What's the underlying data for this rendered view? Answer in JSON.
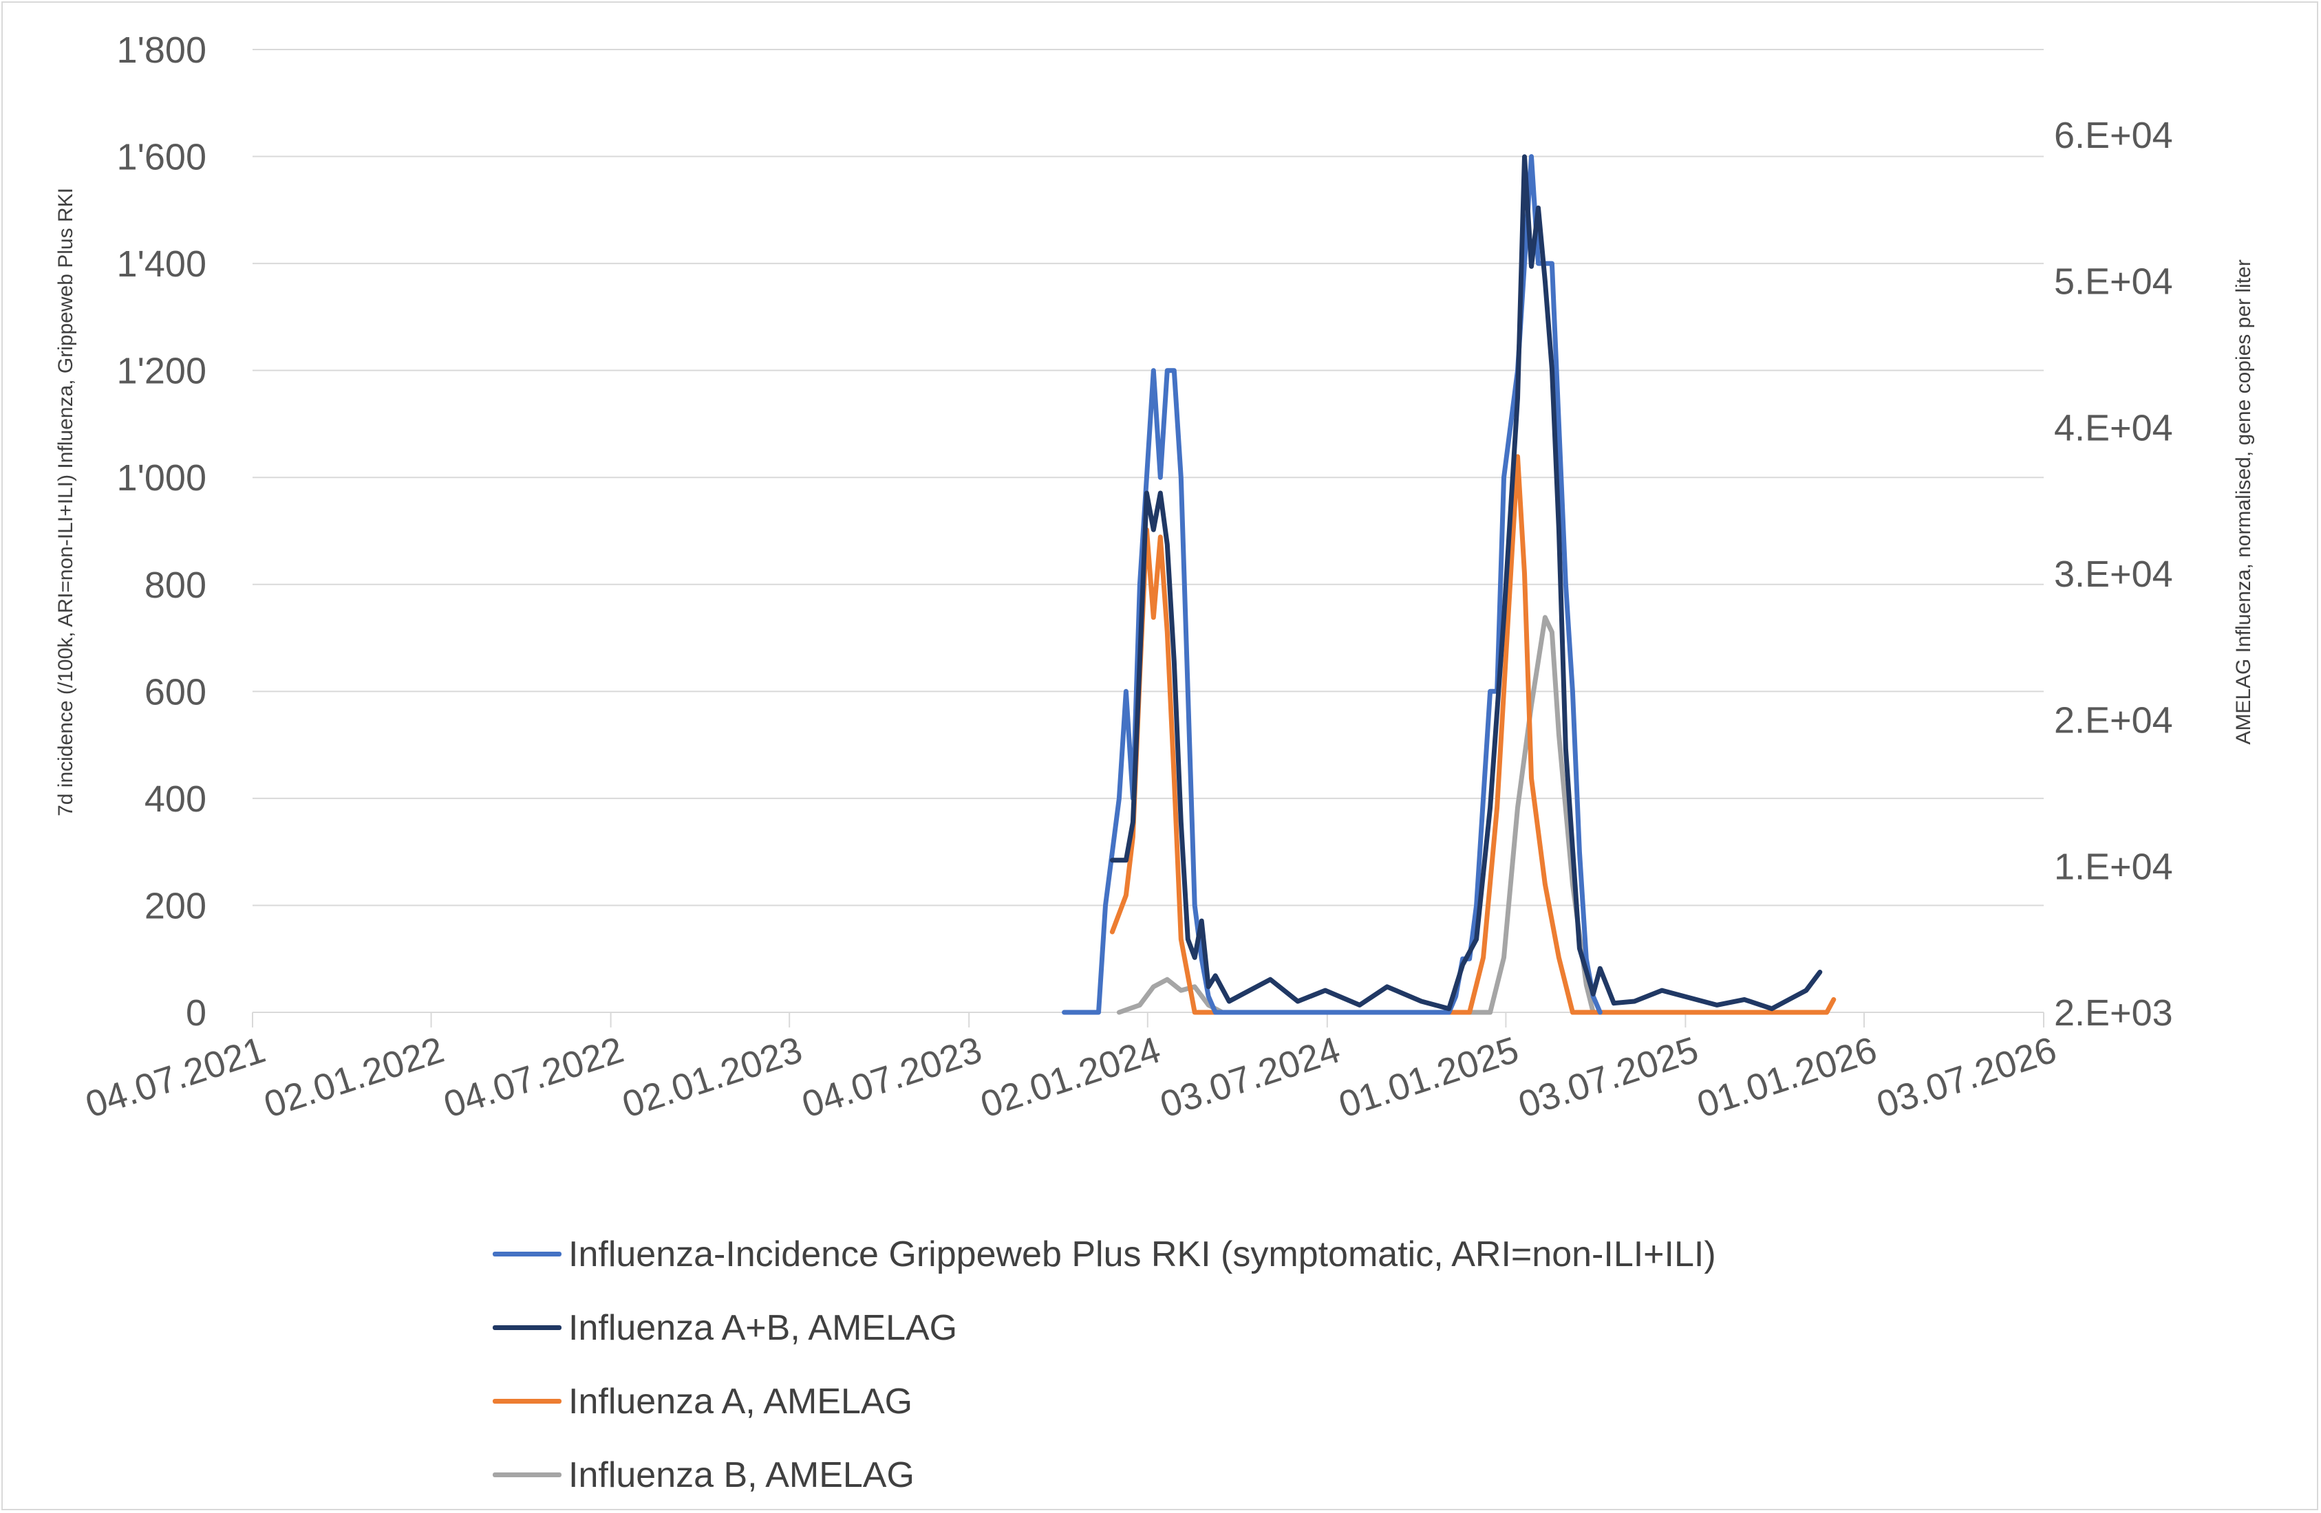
{
  "chart_data": {
    "type": "line",
    "title": "",
    "left_axis": {
      "label": "7d incidence (/100k, ARI=non-ILI+ILI) Influenza, Grippeweb Plus RKI",
      "range": [
        0,
        1800
      ],
      "ticks": [
        0,
        200,
        400,
        600,
        800,
        1000,
        1200,
        1400,
        1600,
        1800
      ],
      "tick_labels": [
        "0",
        "200",
        "400",
        "600",
        "800",
        "1'000",
        "1'200",
        "1'400",
        "1'600",
        "1'800"
      ],
      "grid": true
    },
    "right_axis": {
      "label": "AMELAG Influenza, normalised, gene copies per liter",
      "tick_labels": [
        "2.E+03",
        "1.E+04",
        "2.E+04",
        "3.E+04",
        "4.E+04",
        "5.E+04",
        "6.E+04"
      ],
      "note_ticks_equally_spaced": true
    },
    "x_axis": {
      "type": "date",
      "range": [
        "2021-07-04",
        "2026-07-03"
      ],
      "ticks": [
        "2021-07-04",
        "2022-01-02",
        "2022-07-04",
        "2023-01-02",
        "2023-07-04",
        "2024-01-02",
        "2024-07-03",
        "2025-01-01",
        "2025-07-03",
        "2026-01-01",
        "2026-07-03"
      ],
      "tick_labels": [
        "04.07.2021",
        "02.01.2022",
        "04.07.2022",
        "02.01.2023",
        "04.07.2023",
        "02.01.2024",
        "03.07.2024",
        "01.01.2025",
        "03.07.2025",
        "01.01.2026",
        "03.07.2026"
      ]
    },
    "legend_position": "bottom",
    "series": [
      {
        "name": "Influenza-Incidence Grippeweb Plus RKI (symptomatic, ARI=non-ILI+ILI)",
        "axis": "left",
        "color": "#4472C4",
        "points": [
          [
            "2023-10-09",
            0
          ],
          [
            "2023-11-13",
            0
          ],
          [
            "2023-11-20",
            200
          ],
          [
            "2023-12-04",
            400
          ],
          [
            "2023-12-11",
            600
          ],
          [
            "2023-12-18",
            400
          ],
          [
            "2023-12-25",
            800
          ],
          [
            "2024-01-01",
            1000
          ],
          [
            "2024-01-08",
            1200
          ],
          [
            "2024-01-15",
            1000
          ],
          [
            "2024-01-22",
            1200
          ],
          [
            "2024-01-29",
            1200
          ],
          [
            "2024-02-05",
            1000
          ],
          [
            "2024-02-12",
            600
          ],
          [
            "2024-02-19",
            200
          ],
          [
            "2024-02-26",
            100
          ],
          [
            "2024-03-04",
            30
          ],
          [
            "2024-03-11",
            0
          ],
          [
            "2024-11-04",
            0
          ],
          [
            "2024-11-11",
            30
          ],
          [
            "2024-11-18",
            100
          ],
          [
            "2024-11-25",
            100
          ],
          [
            "2024-12-02",
            200
          ],
          [
            "2024-12-09",
            400
          ],
          [
            "2024-12-16",
            600
          ],
          [
            "2024-12-23",
            600
          ],
          [
            "2024-12-30",
            1000
          ],
          [
            "2025-01-06",
            1100
          ],
          [
            "2025-01-13",
            1200
          ],
          [
            "2025-01-20",
            1400
          ],
          [
            "2025-01-27",
            1600
          ],
          [
            "2025-02-03",
            1400
          ],
          [
            "2025-02-10",
            1400
          ],
          [
            "2025-02-17",
            1400
          ],
          [
            "2025-02-24",
            1100
          ],
          [
            "2025-03-03",
            800
          ],
          [
            "2025-03-10",
            600
          ],
          [
            "2025-03-17",
            300
          ],
          [
            "2025-03-24",
            100
          ],
          [
            "2025-03-31",
            30
          ],
          [
            "2025-04-07",
            0
          ]
        ]
      },
      {
        "name": "Influenza A+B, AMELAG",
        "axis": "right",
        "color": "#203864",
        "points": [
          [
            "2023-11-27",
            10400
          ],
          [
            "2023-12-11",
            10400
          ],
          [
            "2023-12-18",
            13000
          ],
          [
            "2023-12-25",
            24000
          ],
          [
            "2024-01-01",
            35500
          ],
          [
            "2024-01-08",
            33000
          ],
          [
            "2024-01-15",
            35500
          ],
          [
            "2024-01-22",
            32000
          ],
          [
            "2024-01-29",
            24000
          ],
          [
            "2024-02-05",
            13000
          ],
          [
            "2024-02-12",
            6000
          ],
          [
            "2024-02-19",
            5000
          ],
          [
            "2024-02-26",
            7000
          ],
          [
            "2024-03-04",
            3400
          ],
          [
            "2024-03-11",
            4000
          ],
          [
            "2024-03-25",
            2600
          ],
          [
            "2024-04-08",
            3000
          ],
          [
            "2024-05-06",
            3800
          ],
          [
            "2024-06-03",
            2600
          ],
          [
            "2024-07-01",
            3200
          ],
          [
            "2024-08-05",
            2400
          ],
          [
            "2024-09-02",
            3400
          ],
          [
            "2024-10-07",
            2600
          ],
          [
            "2024-11-04",
            2200
          ],
          [
            "2024-11-18",
            4600
          ],
          [
            "2024-12-02",
            6000
          ],
          [
            "2024-12-16",
            14000
          ],
          [
            "2024-12-30",
            27000
          ],
          [
            "2025-01-13",
            42000
          ],
          [
            "2025-01-20",
            58500
          ],
          [
            "2025-01-27",
            51000
          ],
          [
            "2025-02-03",
            55000
          ],
          [
            "2025-02-10",
            50000
          ],
          [
            "2025-02-17",
            44000
          ],
          [
            "2025-02-24",
            33000
          ],
          [
            "2025-03-03",
            18000
          ],
          [
            "2025-03-17",
            5500
          ],
          [
            "2025-03-31",
            3000
          ],
          [
            "2025-04-07",
            4400
          ],
          [
            "2025-04-21",
            2500
          ],
          [
            "2025-05-12",
            2600
          ],
          [
            "2025-06-09",
            3200
          ],
          [
            "2025-07-07",
            2800
          ],
          [
            "2025-08-04",
            2400
          ],
          [
            "2025-09-01",
            2700
          ],
          [
            "2025-09-29",
            2200
          ],
          [
            "2025-10-20",
            2800
          ],
          [
            "2025-11-03",
            3200
          ],
          [
            "2025-11-17",
            4200
          ]
        ]
      },
      {
        "name": "Influenza A, AMELAG",
        "axis": "right",
        "color": "#ED7D31",
        "points": [
          [
            "2023-11-27",
            6400
          ],
          [
            "2023-12-11",
            8400
          ],
          [
            "2023-12-18",
            12000
          ],
          [
            "2023-12-25",
            23000
          ],
          [
            "2024-01-01",
            33000
          ],
          [
            "2024-01-08",
            27000
          ],
          [
            "2024-01-15",
            32500
          ],
          [
            "2024-01-22",
            26000
          ],
          [
            "2024-01-29",
            16000
          ],
          [
            "2024-02-05",
            6000
          ],
          [
            "2024-02-12",
            4000
          ],
          [
            "2024-02-19",
            2000
          ],
          [
            "2024-11-25",
            2000
          ],
          [
            "2024-12-09",
            5000
          ],
          [
            "2024-12-23",
            14000
          ],
          [
            "2025-01-06",
            30000
          ],
          [
            "2025-01-13",
            38000
          ],
          [
            "2025-01-20",
            30000
          ],
          [
            "2025-01-27",
            16000
          ],
          [
            "2025-02-10",
            9000
          ],
          [
            "2025-02-24",
            5000
          ],
          [
            "2025-03-10",
            2000
          ],
          [
            "2025-11-24",
            2000
          ],
          [
            "2025-12-01",
            2700
          ]
        ]
      },
      {
        "name": "Influenza B, AMELAG",
        "axis": "right",
        "color": "#A5A5A5",
        "points": [
          [
            "2023-12-04",
            2000
          ],
          [
            "2023-12-25",
            2400
          ],
          [
            "2024-01-08",
            3400
          ],
          [
            "2024-01-22",
            3800
          ],
          [
            "2024-02-05",
            3200
          ],
          [
            "2024-02-19",
            3400
          ],
          [
            "2024-03-04",
            2400
          ],
          [
            "2024-03-18",
            2000
          ],
          [
            "2024-12-16",
            2000
          ],
          [
            "2024-12-30",
            5000
          ],
          [
            "2025-01-13",
            14000
          ],
          [
            "2025-01-27",
            21000
          ],
          [
            "2025-02-10",
            27000
          ],
          [
            "2025-02-17",
            26000
          ],
          [
            "2025-02-24",
            19000
          ],
          [
            "2025-03-10",
            9000
          ],
          [
            "2025-03-24",
            3500
          ],
          [
            "2025-03-31",
            2000
          ]
        ]
      }
    ]
  }
}
